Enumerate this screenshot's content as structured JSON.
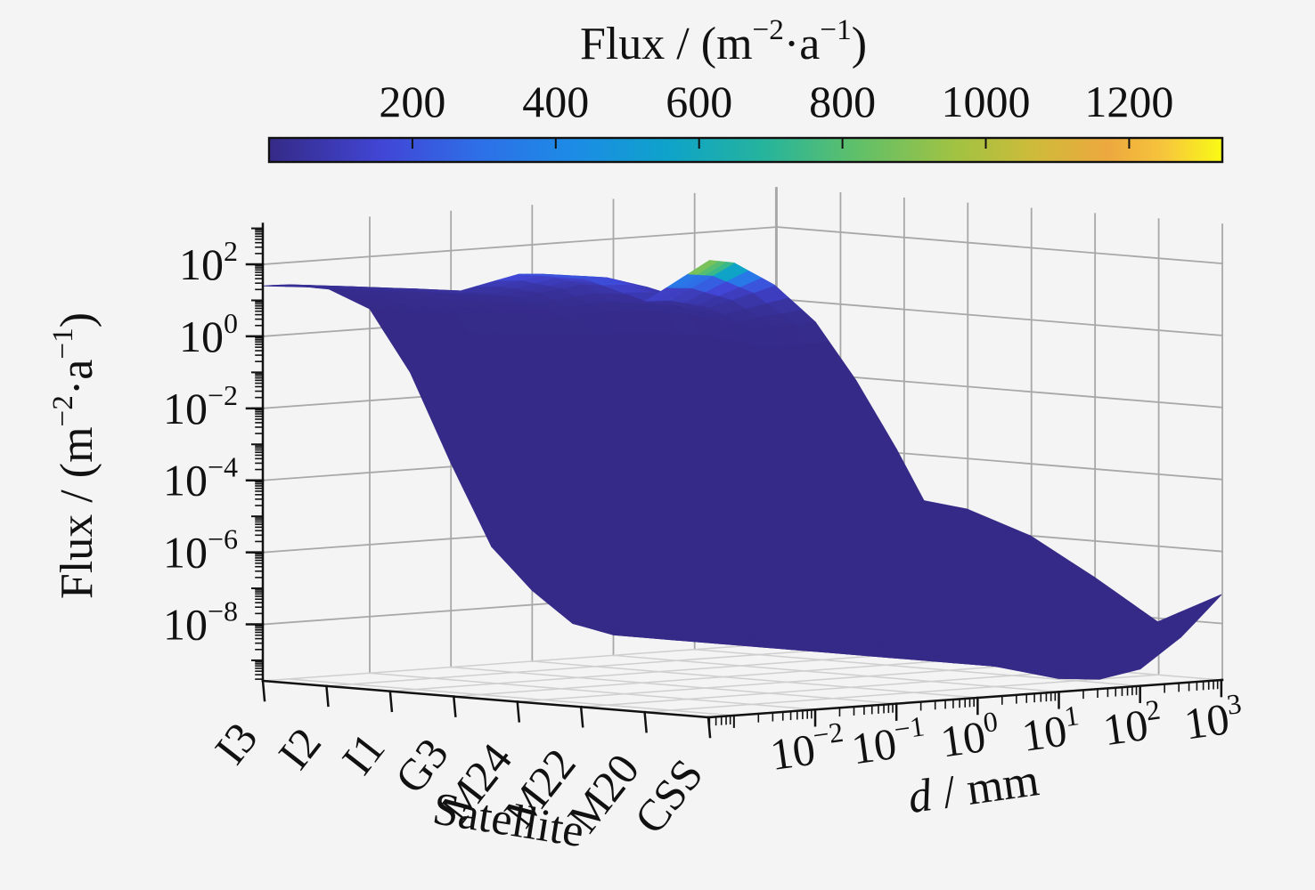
{
  "page": {
    "background": "#f4f4f5"
  },
  "colorbar": {
    "title_parts": [
      {
        "t": "Flux / (m"
      },
      {
        "t": "−2",
        "sup": true
      },
      {
        "t": "·a"
      },
      {
        "t": "−1",
        "sup": true
      },
      {
        "t": ")"
      }
    ],
    "tick_values": [
      200,
      400,
      600,
      800,
      1000,
      1200
    ],
    "tick_labels": [
      "200",
      "400",
      "600",
      "800",
      "1000",
      "1200"
    ],
    "range": [
      0,
      1330
    ],
    "colormap": "parula",
    "stops": [
      [
        0.0,
        "#352A87"
      ],
      [
        0.12,
        "#4146D6"
      ],
      [
        0.22,
        "#2E6FE7"
      ],
      [
        0.32,
        "#1C8CE6"
      ],
      [
        0.42,
        "#0EA3C9"
      ],
      [
        0.52,
        "#26B49C"
      ],
      [
        0.62,
        "#62C068"
      ],
      [
        0.72,
        "#A1C242"
      ],
      [
        0.8,
        "#CDBB3A"
      ],
      [
        0.88,
        "#EDA83E"
      ],
      [
        0.94,
        "#F7C63C"
      ],
      [
        1.0,
        "#F9FB15"
      ]
    ]
  },
  "axes": {
    "z": {
      "label_parts": [
        {
          "t": "Flux / (m"
        },
        {
          "t": "−2",
          "sup": true
        },
        {
          "t": "·a"
        },
        {
          "t": "−1",
          "sup": true
        },
        {
          "t": ")"
        }
      ],
      "scale": "log10",
      "ticks": [
        {
          "log_value": 2,
          "exp": "2"
        },
        {
          "log_value": 0,
          "exp": "0"
        },
        {
          "log_value": -2,
          "exp": "−2"
        },
        {
          "log_value": -4,
          "exp": "−4"
        },
        {
          "log_value": -6,
          "exp": "−6"
        },
        {
          "log_value": -8,
          "exp": "−8"
        }
      ],
      "range_log10": [
        -9.57,
        3.09
      ]
    },
    "x": {
      "label_parts": [
        {
          "t": "d",
          "italic": true
        },
        {
          "t": " / mm"
        }
      ],
      "scale": "log10",
      "ticks": [
        {
          "log_value": -2,
          "exp": "−2"
        },
        {
          "log_value": -1,
          "exp": "−1"
        },
        {
          "log_value": 0,
          "exp": "0"
        },
        {
          "log_value": 1,
          "exp": "1"
        },
        {
          "log_value": 2,
          "exp": "2"
        },
        {
          "log_value": 3,
          "exp": "3"
        }
      ],
      "range_log10": [
        -3.3,
        3.0
      ]
    },
    "y": {
      "label": "Satellite",
      "categories": [
        "I3",
        "I2",
        "I1",
        "G3",
        "M24",
        "M22",
        "M20",
        "CSS"
      ]
    }
  },
  "chart_data": {
    "type": "surface3d",
    "title": "",
    "x_name": "d / mm",
    "y_name": "Satellite",
    "z_name": "Flux / (m-2·a-1)",
    "x_log10_d": [
      -3.3,
      -3.0,
      -2.5,
      -2.0,
      -1.5,
      -1.0,
      -0.5,
      0.0,
      0.5,
      1.0,
      1.5,
      2.0,
      2.5,
      3.0
    ],
    "categories": [
      "I3",
      "I2",
      "I1",
      "G3",
      "M24",
      "M22",
      "M20",
      "CSS"
    ],
    "series": [
      {
        "name": "I3",
        "log10_flux": [
          1.4,
          1.38,
          1.18,
          0.55,
          -1.3,
          -3.9,
          -6.3,
          -7.6,
          -8.6,
          -9.0,
          -8.6,
          -7.6,
          -6.3,
          -5.0
        ]
      },
      {
        "name": "I2",
        "log10_flux": [
          1.5,
          1.47,
          1.25,
          0.62,
          -1.2,
          -3.8,
          -6.2,
          -7.5,
          -8.6,
          -9.0,
          -8.7,
          -7.7,
          -6.4,
          -5.1
        ]
      },
      {
        "name": "I1",
        "log10_flux": [
          1.58,
          1.55,
          1.32,
          0.7,
          -1.1,
          -3.7,
          -6.1,
          -7.5,
          -8.5,
          -9.0,
          -8.8,
          -7.8,
          -6.5,
          -5.2
        ]
      },
      {
        "name": "G3",
        "log10_flux": [
          1.65,
          1.62,
          1.4,
          0.78,
          -1.0,
          -3.6,
          -6.0,
          -7.4,
          -8.5,
          -9.0,
          -8.9,
          -7.9,
          -6.7,
          -5.4
        ]
      },
      {
        "name": "M24",
        "log10_flux": [
          2.3,
          2.25,
          1.9,
          1.1,
          -0.8,
          -3.4,
          -5.9,
          -7.3,
          -8.4,
          -9.0,
          -9.0,
          -8.4,
          -7.2,
          -6.0
        ]
      },
      {
        "name": "M22",
        "log10_flux": [
          2.35,
          2.3,
          1.95,
          1.15,
          -0.7,
          -3.3,
          -5.8,
          -7.2,
          -8.4,
          -9.0,
          -9.1,
          -8.7,
          -7.8,
          -7.0
        ]
      },
      {
        "name": "M20",
        "log10_flux": [
          1.85,
          1.82,
          1.55,
          0.9,
          -0.8,
          -3.4,
          -5.9,
          -7.3,
          -8.4,
          -9.0,
          -9.2,
          -9.0,
          -8.5,
          -8.1
        ]
      },
      {
        "name": "CSS",
        "log10_flux": [
          3.12,
          3.0,
          2.3,
          1.2,
          -0.5,
          -2.5,
          -4.7,
          -6.6,
          -8.3,
          -9.2,
          -9.3,
          -9.1,
          -8.3,
          -7.2
        ]
      }
    ],
    "color_axis": {
      "scale": "linear",
      "range": [
        0,
        1330
      ],
      "colormap": "parula"
    },
    "peak": {
      "satellite": "CSS",
      "approx_flux": 1300
    },
    "grid": true,
    "colorbar_position": "top"
  },
  "style": {
    "surface_base_color": "#372F94",
    "wall_grid_color": "#a8a8a8",
    "floor_grid_color": "#cfcfcf",
    "axis_color": "#111111",
    "background": "#f4f4f5"
  }
}
